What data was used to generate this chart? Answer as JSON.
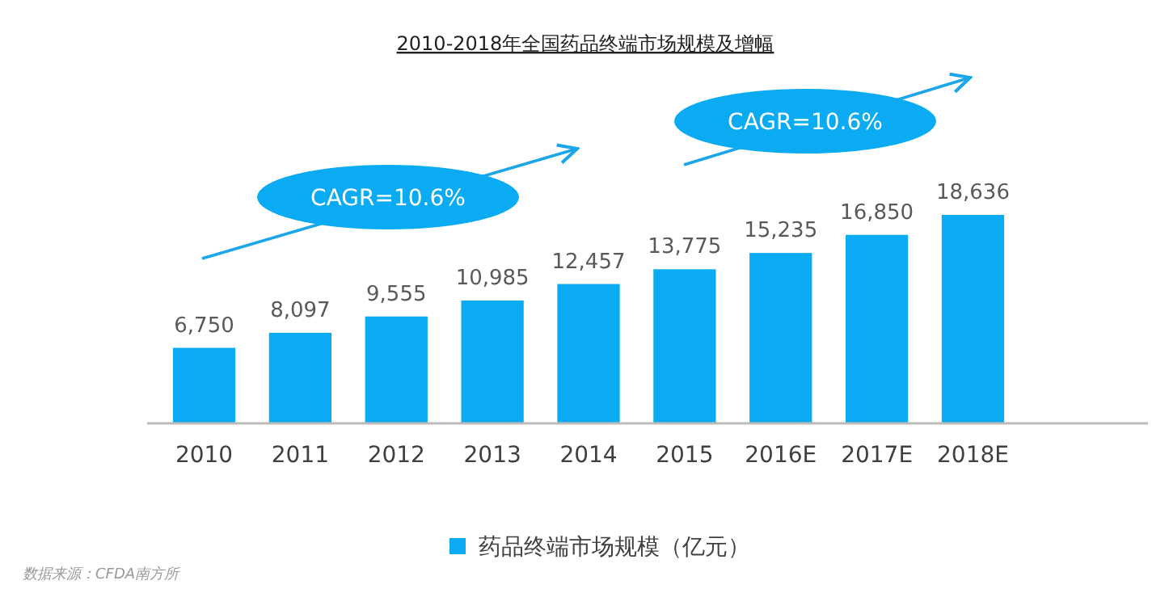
{
  "chart_data": {
    "type": "bar",
    "title": "2010-2018年全国药品终端市场规模及增幅",
    "categories": [
      "2010",
      "2011",
      "2012",
      "2013",
      "2014",
      "2015",
      "2016E",
      "2017E",
      "2018E"
    ],
    "series": [
      {
        "name": "药品终端市场规模（亿元）",
        "color": "#0aabf2",
        "values": [
          6750,
          8097,
          9555,
          10985,
          12457,
          13775,
          15235,
          16850,
          18636
        ],
        "value_labels": [
          "6,750",
          "8,097",
          "9,555",
          "10,985",
          "12,457",
          "13,775",
          "15,235",
          "16,850",
          "18,636"
        ]
      }
    ],
    "tick_labels": "x",
    "legend": "bottom",
    "grid": false,
    "annotations": [
      "CAGR=10.6%",
      "CAGR=10.6%",
      "数据来源：CFDA南方所"
    ]
  }
}
